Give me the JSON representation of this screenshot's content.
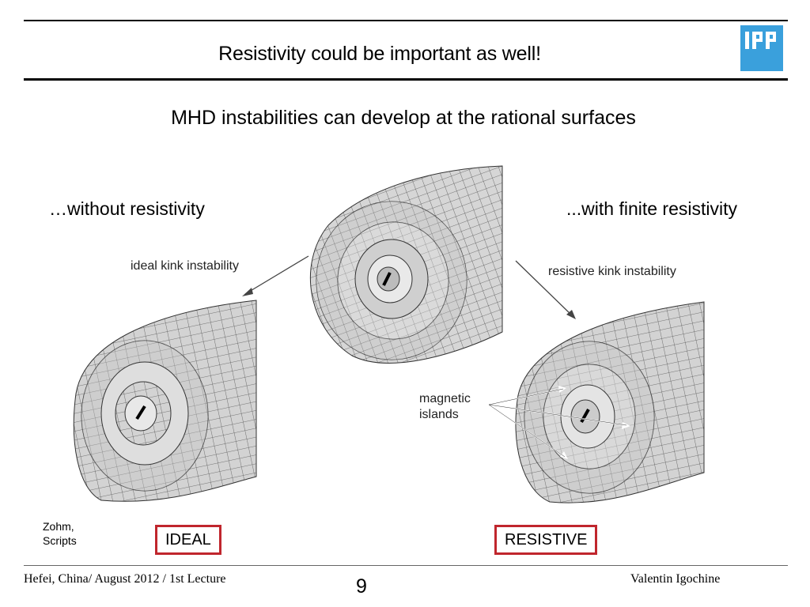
{
  "slide": {
    "title": "Resistivity could be important as well!",
    "subtitle": "MHD instabilities can develop at the rational surfaces",
    "left_caption": "…without resistivity",
    "right_caption": "...with finite resistivity",
    "ideal_figure_label": "ideal kink instability",
    "resistive_figure_label": "resistive kink instability",
    "islands_label_line1": "magnetic",
    "islands_label_line2": "islands",
    "credit_line1": "Zohm,",
    "credit_line2": "Scripts",
    "ideal_box": "IDEAL",
    "resistive_box": "RESISTIVE",
    "logo_text": "IPP"
  },
  "footer": {
    "left": "Hefei, China/ August 2012 / 1st Lecture",
    "page_number": "9",
    "author": "Valentin Igochine"
  },
  "colors": {
    "accent_box": "#c0262d",
    "logo_blue": "#3aa0dc",
    "torus_fill": "#d9d9d9",
    "torus_grid": "#4a4a4a"
  }
}
